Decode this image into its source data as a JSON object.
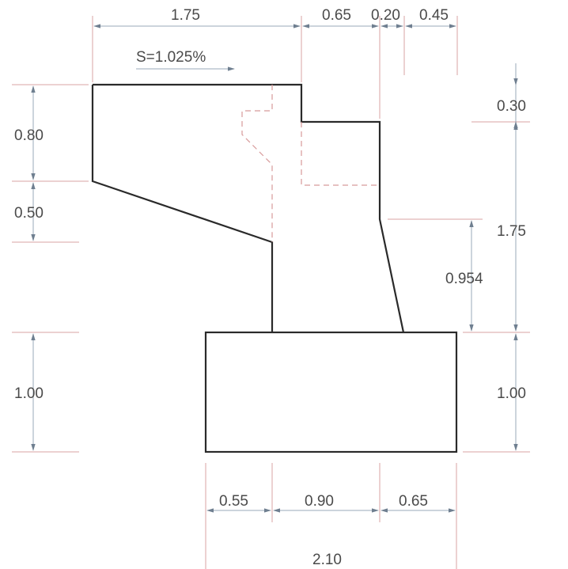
{
  "slope_label": "S=1.025%",
  "dimensions": {
    "top_left_width": "1.75",
    "top_mid_width": "0.65",
    "top_gap_width": "0.20",
    "top_right_width": "0.45",
    "left_upper_height": "0.80",
    "left_lower_height": "0.50",
    "left_base_height": "1.00",
    "right_top_offset": "0.30",
    "right_stem_height": "1.75",
    "inner_stem_height": "0.954",
    "right_base_height": "1.00",
    "bottom_left_width": "0.55",
    "bottom_mid_width": "0.90",
    "bottom_right_width": "0.65",
    "bottom_total_width": "2.10"
  },
  "colors": {
    "outline": "#2a2a2a",
    "hidden_line": "#d79a9a",
    "extension_line": "#d9a3a3",
    "dimension_line": "#9aa9b8",
    "text": "#4a4a4a"
  }
}
